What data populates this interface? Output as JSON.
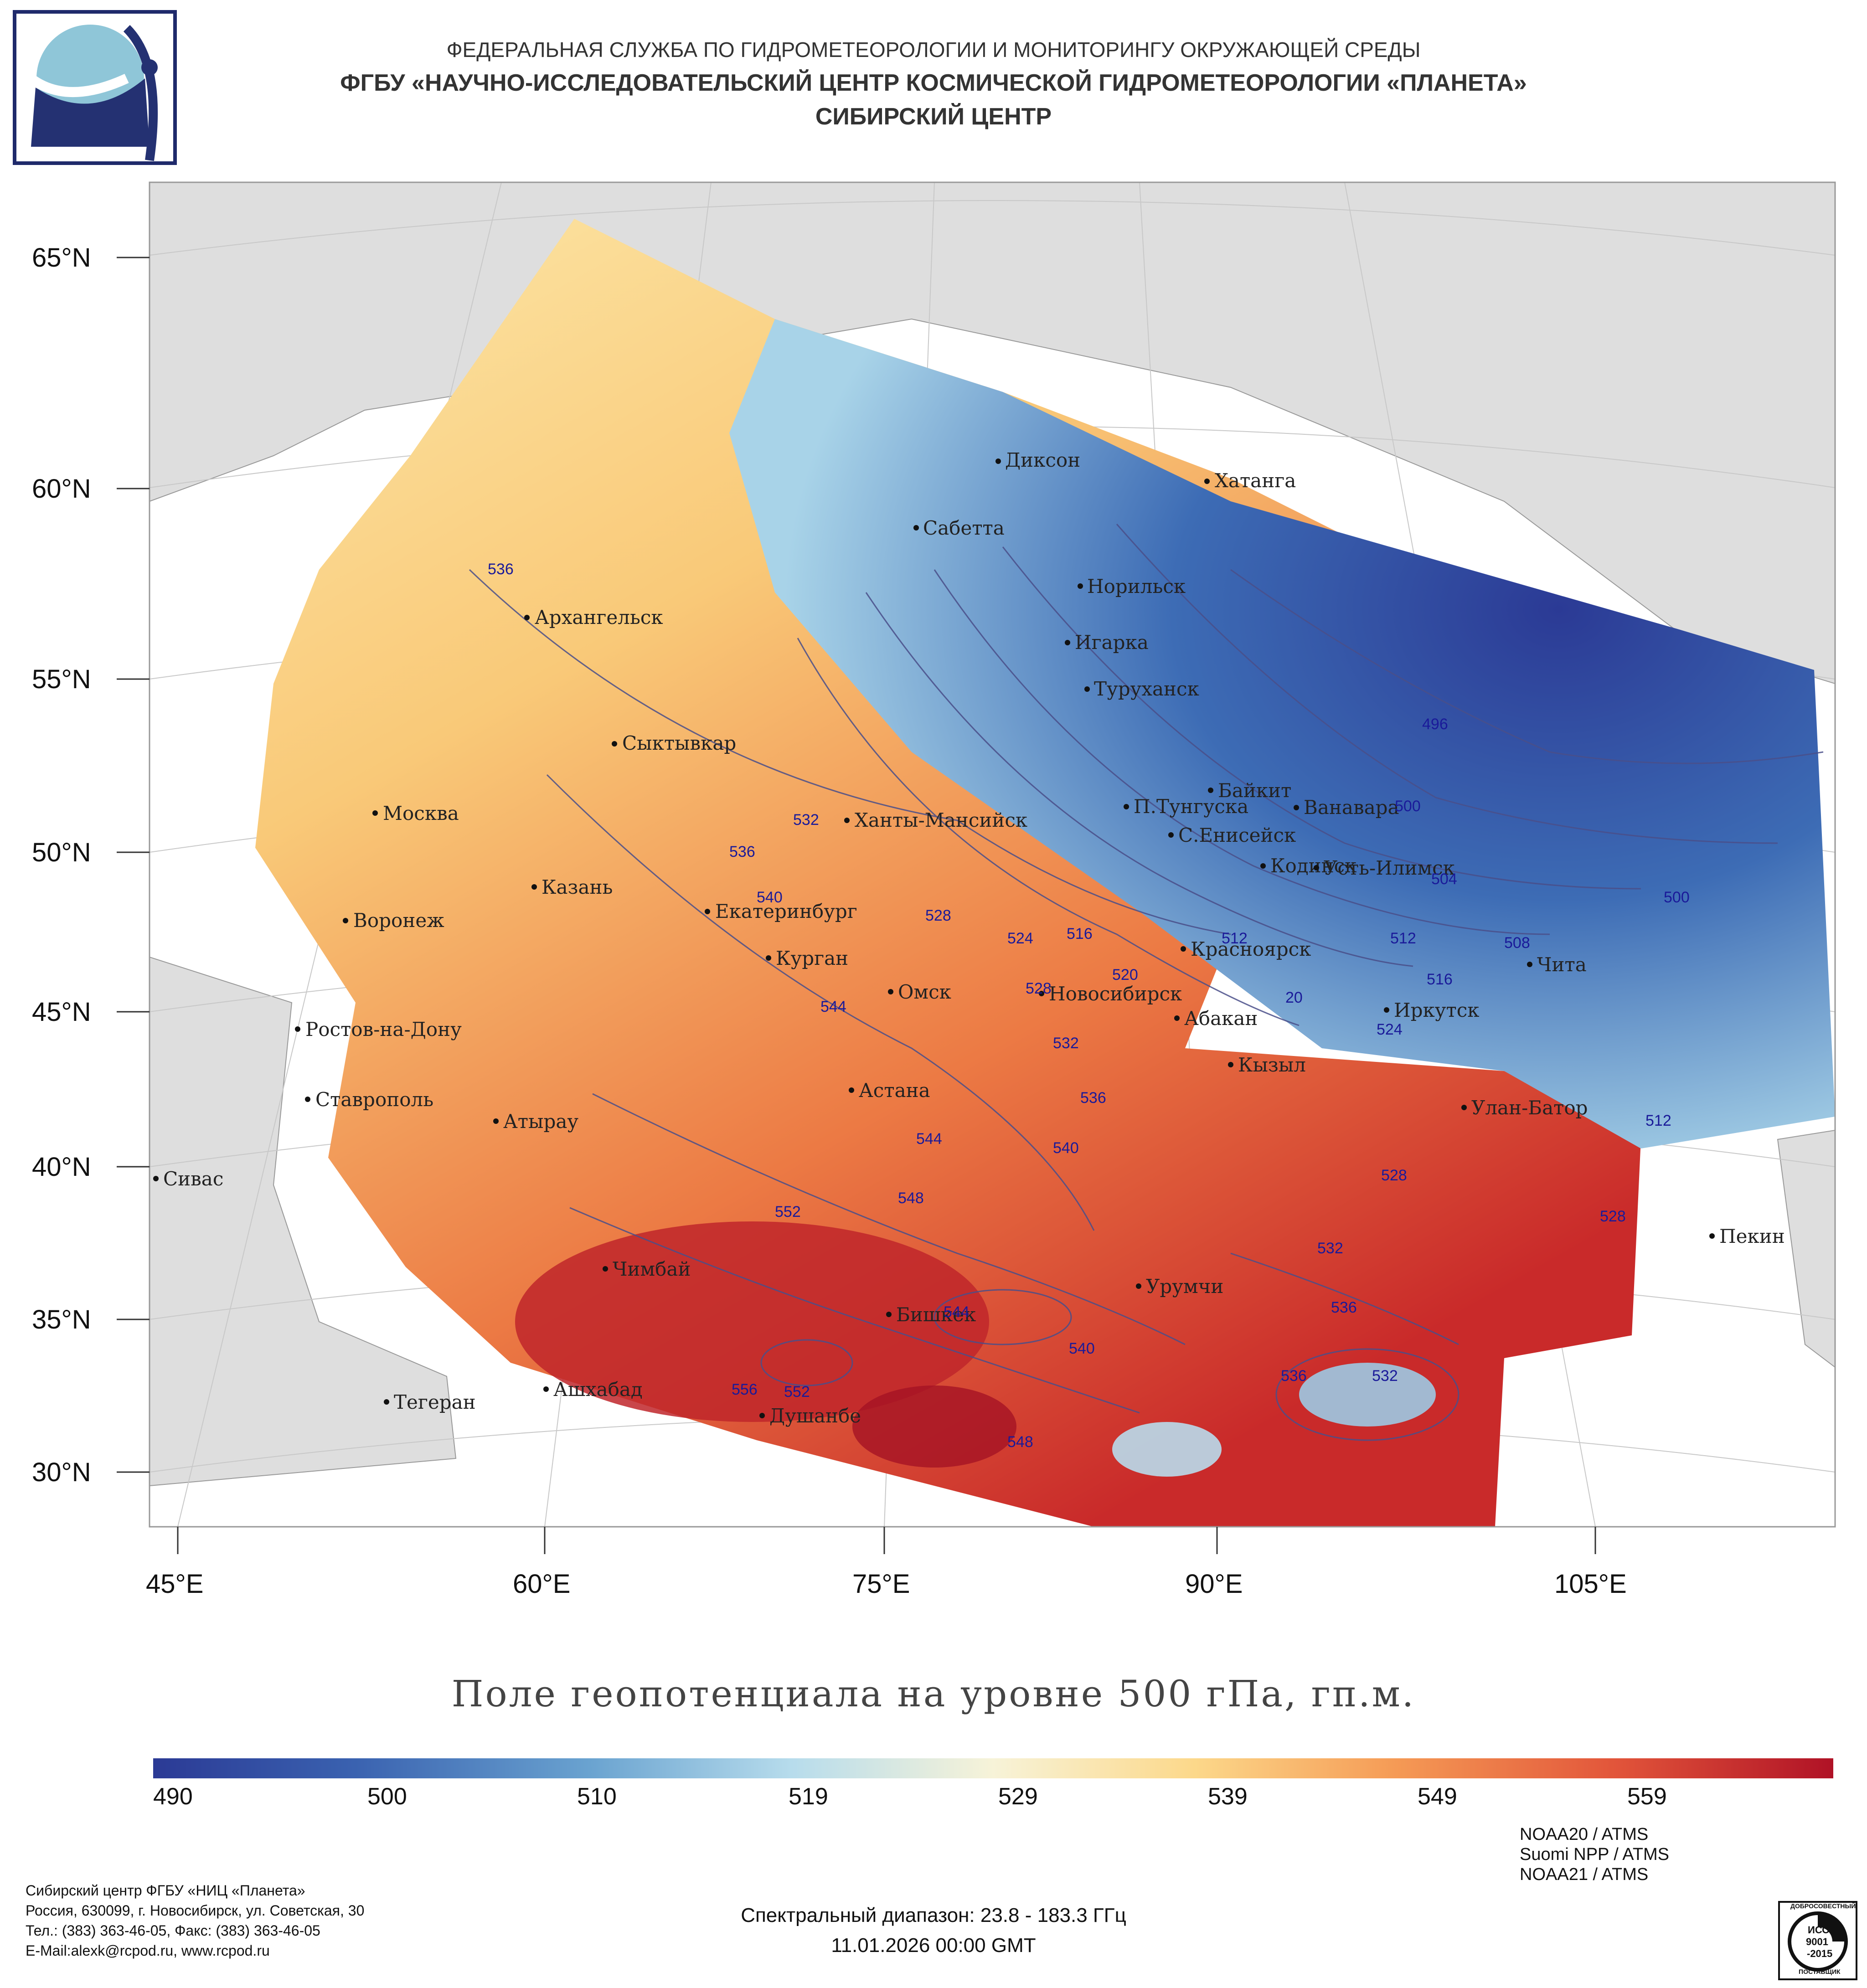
{
  "header": {
    "line1": "ФЕДЕРАЛЬНАЯ СЛУЖБА ПО ГИДРОМЕТЕОРОЛОГИИ И МОНИТОРИНГУ ОКРУЖАЮЩЕЙ СРЕДЫ",
    "line2": "ФГБУ «НАУЧНО-ИССЛЕДОВАТЕЛЬСКИЙ ЦЕНТР КОСМИЧЕСКОЙ ГИДРОМЕТЕОРОЛОГИИ «ПЛАНЕТА»",
    "line3": "СИБИРСКИЙ ЦЕНТР"
  },
  "map": {
    "lat_labels": [
      "65°N",
      "60°N",
      "55°N",
      "50°N",
      "45°N",
      "40°N",
      "35°N",
      "30°N"
    ],
    "lon_labels": [
      "45°E",
      "60°E",
      "75°E",
      "90°E",
      "105°E"
    ],
    "cities": [
      "Диксон",
      "Хатанга",
      "Сабетта",
      "Норильск",
      "Игарка",
      "Туруханск",
      "Архангельск",
      "Сыктывкар",
      "Москва",
      "Байкит",
      "П.Тунгуска",
      "Ванавара",
      "С.Енисейск",
      "Ханты-Мансийск",
      "Кодинск",
      "Усть-Илимск",
      "Казань",
      "Екатеринбург",
      "Воронеж",
      "Красноярск",
      "Чита",
      "Курган",
      "Омск",
      "Новосибирск",
      "Иркутск",
      "Ростов-на-Дону",
      "Абакан",
      "Кызыл",
      "Ставрополь",
      "Астана",
      "Улан-Батор",
      "Атырау",
      "Сивас",
      "Пекин",
      "Чимбай",
      "Урумчи",
      "Бишкек",
      "Тегеран",
      "Ашхабад",
      "Душанбе"
    ],
    "isoline_labels": [
      "536",
      "532",
      "536",
      "540",
      "528",
      "524",
      "516",
      "520",
      "512",
      "528",
      "544",
      "532",
      "536",
      "540",
      "544",
      "548",
      "552",
      "556",
      "552",
      "544",
      "540",
      "548",
      "536",
      "532",
      "536",
      "532",
      "528",
      "528",
      "512",
      "516",
      "508",
      "504",
      "500",
      "496",
      "500",
      "512",
      "20",
      "524"
    ]
  },
  "chart_data": {
    "type": "heatmap",
    "title": "Поле геопотенциала на уровне 500 гПа, гп.м.",
    "colorbar": {
      "min": 490,
      "max": 565,
      "ticks": [
        "490",
        "500",
        "510",
        "519",
        "529",
        "539",
        "549",
        "559"
      ],
      "colors": [
        "#2b3a95",
        "#3a62b0",
        "#6aa3d0",
        "#b7dcec",
        "#f7f3d8",
        "#fcd88a",
        "#f59a55",
        "#e2553a",
        "#b01226"
      ]
    },
    "isolines": [
      496,
      500,
      504,
      508,
      512,
      516,
      520,
      524,
      528,
      532,
      536,
      540,
      544,
      548,
      552,
      556
    ]
  },
  "footer": {
    "org1": "Сибирский центр ФГБУ «НИЦ «Планета»",
    "org2": "Россия, 630099, г. Новосибирск, ул. Советская, 30",
    "org3": "Тел.: (383) 363-46-05, Факс: (383) 363-46-05",
    "org4": "E-Mail:alexk@rcpod.ru, www.rcpod.ru",
    "spectral": "Спектральный диапазон: 23.8 - 183.3 ГГц",
    "datetime": "11.01.2026 00:00 GMT",
    "sat1": "NOAA20 / ATMS",
    "sat2": "Suomi NPP / ATMS",
    "sat3": "NOAA21 / ATMS",
    "iso_badge": [
      "ДОБРОСОВЕСТНЫЙ",
      "ИСО",
      "9001",
      "-2015",
      "ПОСТАВЩИК"
    ]
  }
}
